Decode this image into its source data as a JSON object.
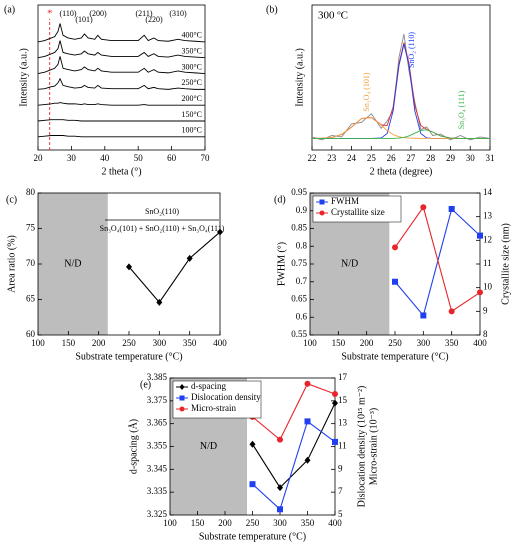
{
  "chart_data": [
    {
      "type": "line",
      "title": "(a)",
      "xlabel": "2 theta (°)",
      "ylabel": "Intensity (a.u.)",
      "xlim": [
        20,
        70
      ],
      "xticks": [
        20,
        30,
        40,
        50,
        60,
        70
      ],
      "ylim": [
        0,
        110
      ],
      "legend": "end",
      "annotations": [
        "(110)",
        "(101)",
        "(200)",
        "(211)",
        "(220)",
        "(310)"
      ],
      "reference_line": {
        "label": "*",
        "x": 23.5,
        "color": "#e8252a"
      },
      "x": [
        20,
        22,
        24,
        25,
        26,
        26.6,
        27.5,
        29,
        31,
        33,
        33.9,
        35,
        37,
        37.9,
        39,
        42,
        46,
        50,
        51.8,
        53,
        54.7,
        56,
        59,
        61.9,
        64,
        67,
        70
      ],
      "series": [
        {
          "name": "400°C",
          "color": "#000",
          "values": [
            82,
            83,
            85,
            86,
            90,
            96,
            87,
            85,
            84,
            85,
            88,
            85,
            84,
            87,
            84,
            83,
            83,
            83,
            87,
            83,
            85,
            83,
            82.5,
            84,
            83,
            82.5,
            82
          ]
        },
        {
          "name": "350°C",
          "color": "#000",
          "values": [
            70,
            71,
            73,
            74,
            77,
            83,
            74,
            73,
            72,
            73,
            75,
            73,
            72,
            74,
            72,
            71,
            71,
            71,
            74,
            71,
            73,
            71,
            70.5,
            72,
            71,
            70.5,
            70
          ]
        },
        {
          "name": "300°C",
          "color": "#000",
          "values": [
            58,
            59,
            61,
            62,
            65,
            71,
            62,
            61,
            60,
            61,
            63,
            61,
            60,
            62,
            60,
            59,
            59,
            59,
            62,
            59,
            61,
            59,
            58.5,
            60,
            59,
            58.5,
            58
          ]
        },
        {
          "name": "250°C",
          "color": "#000",
          "values": [
            46,
            46.5,
            48,
            48.5,
            51,
            54,
            49,
            48,
            47,
            47.5,
            49,
            47.5,
            47,
            49,
            47,
            46.5,
            46.5,
            46.5,
            49,
            46.5,
            47.5,
            46.5,
            46,
            47,
            46.5,
            46,
            46
          ]
        },
        {
          "name": "200°C",
          "color": "#000",
          "values": [
            34,
            34.5,
            35,
            35.5,
            35.5,
            36,
            35.5,
            35,
            35,
            34.5,
            35,
            34.5,
            34.5,
            35,
            34.5,
            34,
            34,
            34,
            34.5,
            34,
            34,
            34,
            34,
            34,
            34,
            34,
            34
          ]
        },
        {
          "name": "150°C",
          "color": "#000",
          "values": [
            22,
            22.5,
            23,
            23,
            23,
            23,
            23,
            22.5,
            22.5,
            22,
            22,
            22,
            22,
            22,
            22,
            22,
            22,
            22,
            22,
            22,
            22,
            22,
            22,
            22,
            22,
            22,
            22
          ]
        },
        {
          "name": "100°C",
          "color": "#000",
          "values": [
            10,
            10.5,
            11,
            11,
            11,
            11,
            11,
            10.5,
            10.5,
            10,
            10,
            10,
            10,
            10,
            10,
            10,
            10,
            10,
            10,
            10,
            10,
            10,
            10,
            10,
            10,
            10,
            10
          ]
        }
      ]
    },
    {
      "type": "line",
      "title": "(b)",
      "xlabel": "2 theta (degree)",
      "ylabel": "Intensity (a.u.)",
      "xlim": [
        22,
        31
      ],
      "xticks": [
        22,
        23,
        24,
        25,
        26,
        27,
        28,
        29,
        30,
        31
      ],
      "ylim": [
        0,
        100
      ],
      "legend": "inline",
      "annotations": [
        "300 ºC"
      ],
      "x": [
        22,
        22.5,
        23,
        23.5,
        24,
        24.5,
        25,
        25.5,
        25.8,
        26.1,
        26.4,
        26.65,
        26.9,
        27.2,
        27.5,
        27.8,
        28.1,
        28.5,
        29,
        29.5,
        30,
        30.5,
        31
      ],
      "series": [
        {
          "color": "#888888",
          "values": [
            9,
            7,
            10,
            9,
            18,
            19,
            25,
            15,
            20,
            27,
            64,
            80,
            55,
            33,
            14,
            16,
            10,
            11,
            7,
            10,
            7,
            9,
            8
          ]
        },
        {
          "color": "#e8252a",
          "values": [
            8,
            8.1,
            8.6,
            10.7,
            15.8,
            21.7,
            22.4,
            17.4,
            16.8,
            29.6,
            59.7,
            74.1,
            60.2,
            30.6,
            16.9,
            14.2,
            12.4,
            9.7,
            8.2,
            8,
            8,
            8,
            8
          ]
        },
        {
          "name": "SnO₂ (110)",
          "color": "#1f3ff0",
          "values": [
            8,
            8,
            8,
            8,
            8,
            8,
            8,
            8.3,
            11.4,
            26.9,
            58.4,
            73,
            58.4,
            26.9,
            11.4,
            8.3,
            8,
            8,
            8,
            8,
            8,
            8,
            8
          ]
        },
        {
          "name": "Sn₃O₄ (101)",
          "color": "#f0a040",
          "values": [
            8,
            8.1,
            8.6,
            10.7,
            15.8,
            21.7,
            22.4,
            17.1,
            13.4,
            10.7,
            9.1,
            8.5,
            8.2,
            8.1,
            8,
            8,
            8,
            8,
            8,
            8,
            8,
            8,
            8
          ]
        },
        {
          "name": "Sn₃O₄ (111)",
          "color": "#3cb44b",
          "values": [
            8,
            8,
            8,
            8,
            8,
            8,
            8,
            8,
            8,
            8,
            8.2,
            8.7,
            9.7,
            11.6,
            13.5,
            13.9,
            12.4,
            9.7,
            8.2,
            8,
            8,
            8,
            8
          ]
        }
      ]
    },
    {
      "type": "line",
      "title": "(c)",
      "xlabel": "Substrate temperature (°C)",
      "ylabel": "Area ratio (%)",
      "xlim": [
        100,
        400
      ],
      "xticks": [
        100,
        150,
        200,
        250,
        300,
        350,
        400
      ],
      "ylim": [
        60,
        80
      ],
      "yticks": [
        60,
        65,
        70,
        75,
        80
      ],
      "nd_region": {
        "label": "N/D",
        "x": [
          100,
          215
        ]
      },
      "annotations": [
        "SnO₂(110)",
        "Sn₃O₄(101) + SnO₂(110) + Sn₃O₄(111)"
      ],
      "x": [
        250,
        300,
        350,
        400
      ],
      "series": [
        {
          "color": "#000",
          "marker": "diamond",
          "values": [
            69.6,
            64.6,
            70.8,
            74.5
          ]
        }
      ]
    },
    {
      "type": "line",
      "title": "(d)",
      "xlabel": "Substrate temperature (°C)",
      "ylabel": "FWHM (°)",
      "y2label": [
        "Crystallite size (nm)"
      ],
      "xlim": [
        100,
        400
      ],
      "xticks": [
        100,
        150,
        200,
        250,
        300,
        350,
        400
      ],
      "ylim": [
        0.55,
        0.95
      ],
      "yticks": [
        0.55,
        0.6,
        0.65,
        0.7,
        0.75,
        0.8,
        0.85,
        0.9,
        0.95
      ],
      "y2lim": [
        8,
        14
      ],
      "y2ticks": [
        8,
        9,
        10,
        11,
        12,
        13,
        14
      ],
      "legend": "upper left",
      "nd_region": {
        "label": "N/D",
        "x": [
          100,
          240
        ]
      },
      "x": [
        250,
        300,
        350,
        400
      ],
      "series": [
        {
          "name": "FWHM",
          "color": "#1f3ff0",
          "marker": "square",
          "values": [
            0.7,
            0.605,
            0.905,
            0.83
          ]
        },
        {
          "name": "Crystallite size",
          "color": "#e8252a",
          "marker": "circle",
          "axis": "y2",
          "values": [
            11.7,
            13.4,
            9.0,
            9.8
          ]
        }
      ]
    },
    {
      "type": "line",
      "title": "(e)",
      "xlabel": "Substrate temperature (°C)",
      "ylabel": "d-spacing (Å)",
      "y2label": [
        "Dislocation density (10¹⁵ m⁻²)",
        "Micro-strain (10⁻³)"
      ],
      "xlim": [
        100,
        400
      ],
      "xticks": [
        100,
        150,
        200,
        250,
        300,
        350,
        400
      ],
      "ylim": [
        3.325,
        3.385
      ],
      "yticks": [
        3.325,
        3.335,
        3.345,
        3.355,
        3.365,
        3.375,
        3.385
      ],
      "y2lim": [
        5,
        17
      ],
      "y2ticks": [
        5,
        7,
        9,
        11,
        13,
        15,
        17
      ],
      "legend": "upper left",
      "nd_region": {
        "label": "N/D",
        "x": [
          100,
          240
        ]
      },
      "x": [
        250,
        300,
        350,
        400
      ],
      "series": [
        {
          "name": "d-spacing",
          "color": "#000",
          "marker": "diamond",
          "values": [
            3.356,
            3.337,
            3.349,
            3.374
          ]
        },
        {
          "name": "Dislocation density",
          "color": "#1f3ff0",
          "marker": "square",
          "axis": "y2",
          "values": [
            7.7,
            5.5,
            13.2,
            11.4
          ]
        },
        {
          "name": "Micro-strain",
          "color": "#e8252a",
          "marker": "circle",
          "axis": "y2",
          "values": [
            13.6,
            11.6,
            16.5,
            15.6
          ]
        }
      ]
    }
  ]
}
